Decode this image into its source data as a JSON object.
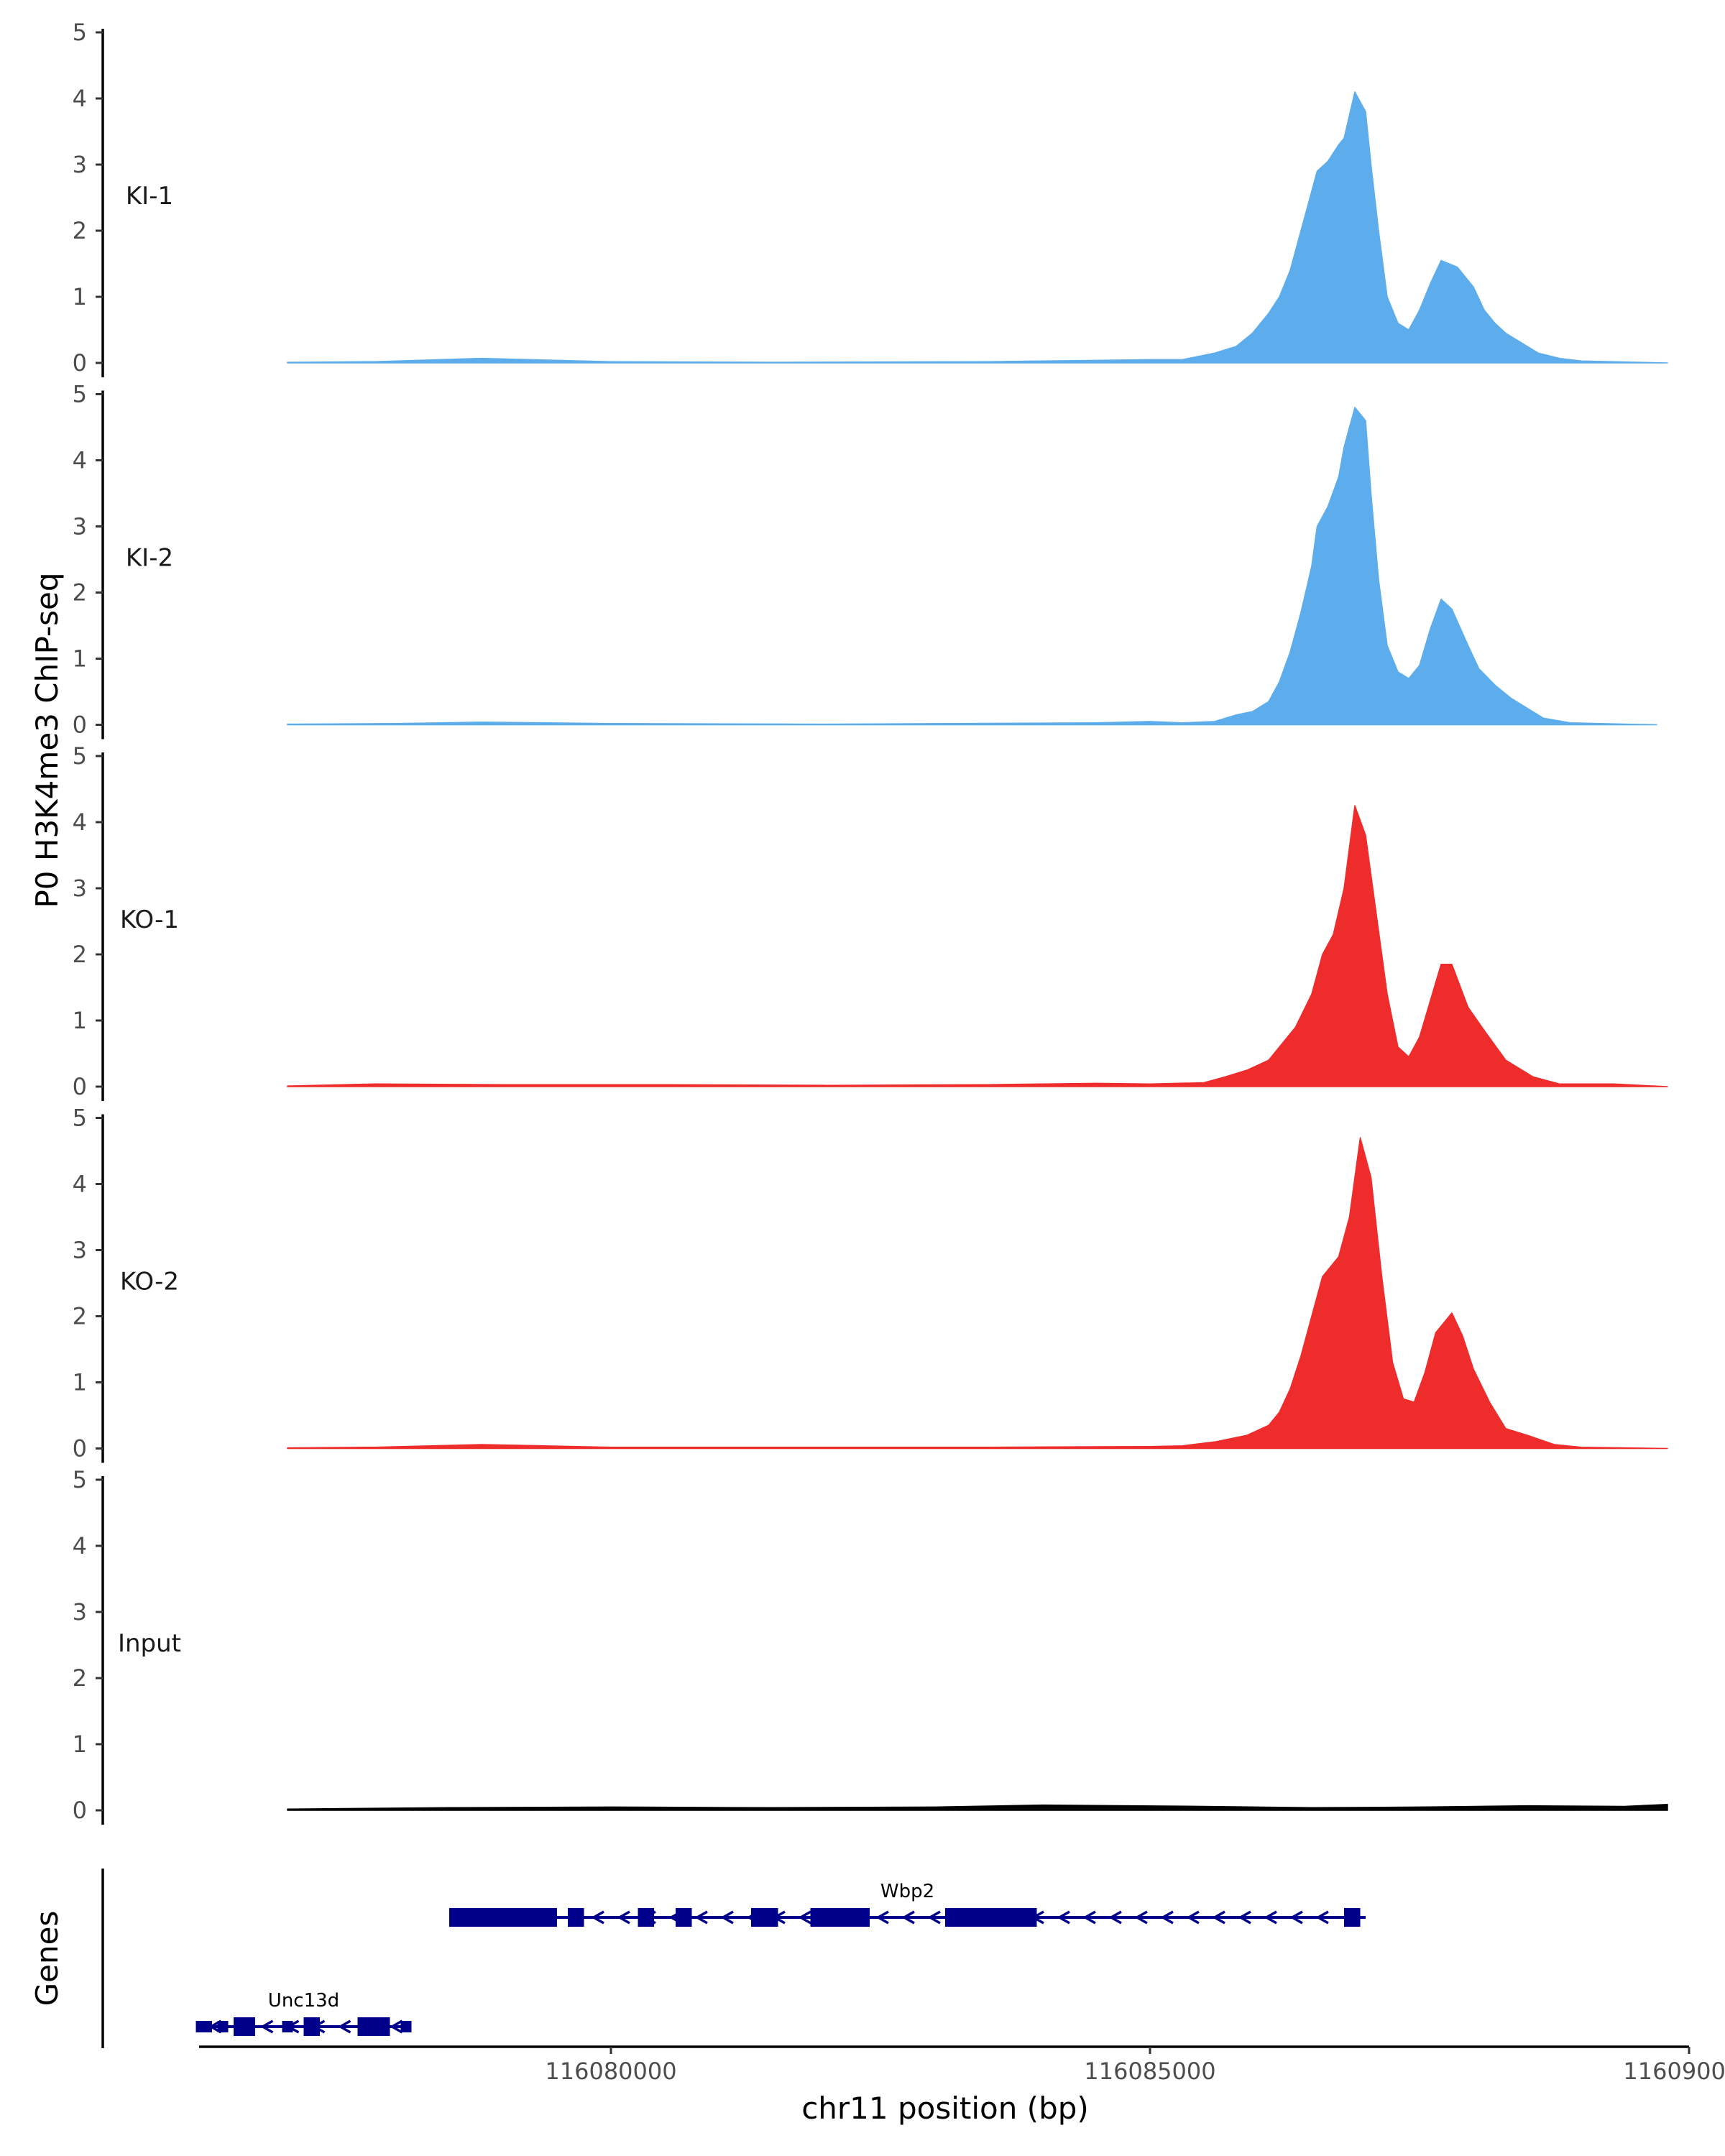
{
  "chart_data": {
    "type": "area",
    "ylabel": "P0 H3K4me3 ChIP-seq",
    "xlabel": "chr11 position (bp)",
    "xlim": [
      116075300,
      116090000
    ],
    "x_ticks": [
      116080000,
      116085000,
      116090000
    ],
    "x_tick_labels": [
      "116080000",
      "116085000",
      "116090000"
    ],
    "ylim": [
      0,
      5
    ],
    "y_ticks": [
      0,
      1,
      2,
      3,
      4,
      5
    ],
    "y_tick_labels": [
      "0",
      "1",
      "2",
      "3",
      "4",
      "5"
    ],
    "genes_label": "Genes",
    "tracks": [
      {
        "name": "KI-1",
        "color": "#5DADEC",
        "points": [
          [
            116077000,
            0.01
          ],
          [
            116077800,
            0.02
          ],
          [
            116078800,
            0.07
          ],
          [
            116080000,
            0.02
          ],
          [
            116081500,
            0.01
          ],
          [
            116083500,
            0.02
          ],
          [
            116085000,
            0.05
          ],
          [
            116085300,
            0.05
          ],
          [
            116085600,
            0.15
          ],
          [
            116085800,
            0.25
          ],
          [
            116085950,
            0.45
          ],
          [
            116086100,
            0.75
          ],
          [
            116086200,
            1.0
          ],
          [
            116086300,
            1.4
          ],
          [
            116086400,
            2.0
          ],
          [
            116086500,
            2.6
          ],
          [
            116086550,
            2.9
          ],
          [
            116086650,
            3.05
          ],
          [
            116086750,
            3.3
          ],
          [
            116086800,
            3.4
          ],
          [
            116086900,
            4.1
          ],
          [
            116087000,
            3.8
          ],
          [
            116087050,
            3.0
          ],
          [
            116087120,
            2.0
          ],
          [
            116087200,
            1.0
          ],
          [
            116087300,
            0.6
          ],
          [
            116087400,
            0.5
          ],
          [
            116087500,
            0.8
          ],
          [
            116087600,
            1.2
          ],
          [
            116087700,
            1.55
          ],
          [
            116087850,
            1.45
          ],
          [
            116088000,
            1.15
          ],
          [
            116088100,
            0.8
          ],
          [
            116088200,
            0.6
          ],
          [
            116088300,
            0.45
          ],
          [
            116088450,
            0.3
          ],
          [
            116088600,
            0.15
          ],
          [
            116088800,
            0.07
          ],
          [
            116089000,
            0.03
          ],
          [
            116089800,
            0.0
          ]
        ]
      },
      {
        "name": "KI-2",
        "color": "#5DADEC",
        "points": [
          [
            116077000,
            0.01
          ],
          [
            116078000,
            0.02
          ],
          [
            116078800,
            0.04
          ],
          [
            116080000,
            0.02
          ],
          [
            116082000,
            0.01
          ],
          [
            116084500,
            0.03
          ],
          [
            116085000,
            0.05
          ],
          [
            116085300,
            0.03
          ],
          [
            116085600,
            0.05
          ],
          [
            116085800,
            0.15
          ],
          [
            116085950,
            0.2
          ],
          [
            116086100,
            0.35
          ],
          [
            116086200,
            0.65
          ],
          [
            116086300,
            1.1
          ],
          [
            116086400,
            1.7
          ],
          [
            116086500,
            2.4
          ],
          [
            116086550,
            3.0
          ],
          [
            116086650,
            3.3
          ],
          [
            116086750,
            3.75
          ],
          [
            116086800,
            4.2
          ],
          [
            116086900,
            4.8
          ],
          [
            116087000,
            4.6
          ],
          [
            116087050,
            3.5
          ],
          [
            116087120,
            2.2
          ],
          [
            116087200,
            1.2
          ],
          [
            116087300,
            0.8
          ],
          [
            116087400,
            0.7
          ],
          [
            116087500,
            0.9
          ],
          [
            116087600,
            1.45
          ],
          [
            116087700,
            1.9
          ],
          [
            116087800,
            1.75
          ],
          [
            116087950,
            1.2
          ],
          [
            116088050,
            0.85
          ],
          [
            116088200,
            0.6
          ],
          [
            116088350,
            0.4
          ],
          [
            116088500,
            0.25
          ],
          [
            116088650,
            0.1
          ],
          [
            116088900,
            0.03
          ],
          [
            116089700,
            0.0
          ]
        ]
      },
      {
        "name": "KO-1",
        "color": "#EE2C2C",
        "points": [
          [
            116077000,
            0.01
          ],
          [
            116077800,
            0.04
          ],
          [
            116079000,
            0.03
          ],
          [
            116080500,
            0.03
          ],
          [
            116082000,
            0.02
          ],
          [
            116083500,
            0.03
          ],
          [
            116084500,
            0.05
          ],
          [
            116085000,
            0.04
          ],
          [
            116085500,
            0.06
          ],
          [
            116085700,
            0.15
          ],
          [
            116085900,
            0.25
          ],
          [
            116086100,
            0.4
          ],
          [
            116086200,
            0.6
          ],
          [
            116086350,
            0.9
          ],
          [
            116086500,
            1.4
          ],
          [
            116086600,
            2.0
          ],
          [
            116086700,
            2.3
          ],
          [
            116086800,
            3.0
          ],
          [
            116086900,
            4.25
          ],
          [
            116087000,
            3.8
          ],
          [
            116087100,
            2.6
          ],
          [
            116087200,
            1.4
          ],
          [
            116087300,
            0.6
          ],
          [
            116087400,
            0.45
          ],
          [
            116087500,
            0.75
          ],
          [
            116087600,
            1.3
          ],
          [
            116087700,
            1.85
          ],
          [
            116087800,
            1.85
          ],
          [
            116087950,
            1.2
          ],
          [
            116088100,
            0.85
          ],
          [
            116088300,
            0.4
          ],
          [
            116088550,
            0.15
          ],
          [
            116088800,
            0.04
          ],
          [
            116089300,
            0.04
          ],
          [
            116089800,
            0.0
          ]
        ]
      },
      {
        "name": "KO-2",
        "color": "#EE2C2C",
        "points": [
          [
            116077000,
            0.01
          ],
          [
            116077800,
            0.02
          ],
          [
            116078800,
            0.06
          ],
          [
            116080000,
            0.02
          ],
          [
            116081500,
            0.02
          ],
          [
            116083500,
            0.02
          ],
          [
            116085000,
            0.03
          ],
          [
            116085300,
            0.04
          ],
          [
            116085600,
            0.1
          ],
          [
            116085900,
            0.2
          ],
          [
            116086100,
            0.35
          ],
          [
            116086200,
            0.55
          ],
          [
            116086300,
            0.9
          ],
          [
            116086400,
            1.4
          ],
          [
            116086500,
            2.0
          ],
          [
            116086600,
            2.6
          ],
          [
            116086750,
            2.9
          ],
          [
            116086850,
            3.5
          ],
          [
            116086950,
            4.7
          ],
          [
            116087050,
            4.1
          ],
          [
            116087150,
            2.6
          ],
          [
            116087250,
            1.3
          ],
          [
            116087350,
            0.75
          ],
          [
            116087450,
            0.7
          ],
          [
            116087550,
            1.15
          ],
          [
            116087650,
            1.75
          ],
          [
            116087800,
            2.05
          ],
          [
            116087900,
            1.7
          ],
          [
            116088000,
            1.2
          ],
          [
            116088150,
            0.7
          ],
          [
            116088300,
            0.3
          ],
          [
            116088500,
            0.2
          ],
          [
            116088750,
            0.06
          ],
          [
            116089000,
            0.02
          ],
          [
            116089800,
            0.0
          ]
        ]
      },
      {
        "name": "Input",
        "color": "#000000",
        "points": [
          [
            116077000,
            0.02
          ],
          [
            116078500,
            0.04
          ],
          [
            116080000,
            0.05
          ],
          [
            116081500,
            0.04
          ],
          [
            116083000,
            0.05
          ],
          [
            116084000,
            0.08
          ],
          [
            116085500,
            0.06
          ],
          [
            116086500,
            0.04
          ],
          [
            116087500,
            0.05
          ],
          [
            116088500,
            0.07
          ],
          [
            116089400,
            0.06
          ],
          [
            116089800,
            0.09
          ]
        ]
      }
    ],
    "genes": [
      {
        "name": "Wbp2",
        "color": "#00008B",
        "start": 116078500,
        "end": 116087000,
        "strand": "-",
        "exons": [
          [
            116078500,
            116079500,
            "wide"
          ],
          [
            116079600,
            116079750,
            "wide"
          ],
          [
            116080250,
            116080400,
            "wide"
          ],
          [
            116080600,
            116080750,
            "wide"
          ],
          [
            116081300,
            116081550,
            "wide"
          ],
          [
            116081850,
            116082400,
            "wide"
          ],
          [
            116083100,
            116083950,
            "wide"
          ],
          [
            116086800,
            116086950,
            "wide"
          ]
        ]
      },
      {
        "name": "Unc13d",
        "color": "#00008B",
        "start": 116076150,
        "end": 116078150,
        "strand": "-",
        "exons": [
          [
            116076150,
            116076300,
            "thin"
          ],
          [
            116076350,
            116076450,
            "thin"
          ],
          [
            116076500,
            116076700,
            "wide"
          ],
          [
            116076950,
            116077050,
            "thin"
          ],
          [
            116077150,
            116077300,
            "wide"
          ],
          [
            116077650,
            116077950,
            "wide"
          ],
          [
            116078050,
            116078150,
            "thin"
          ]
        ]
      }
    ]
  }
}
